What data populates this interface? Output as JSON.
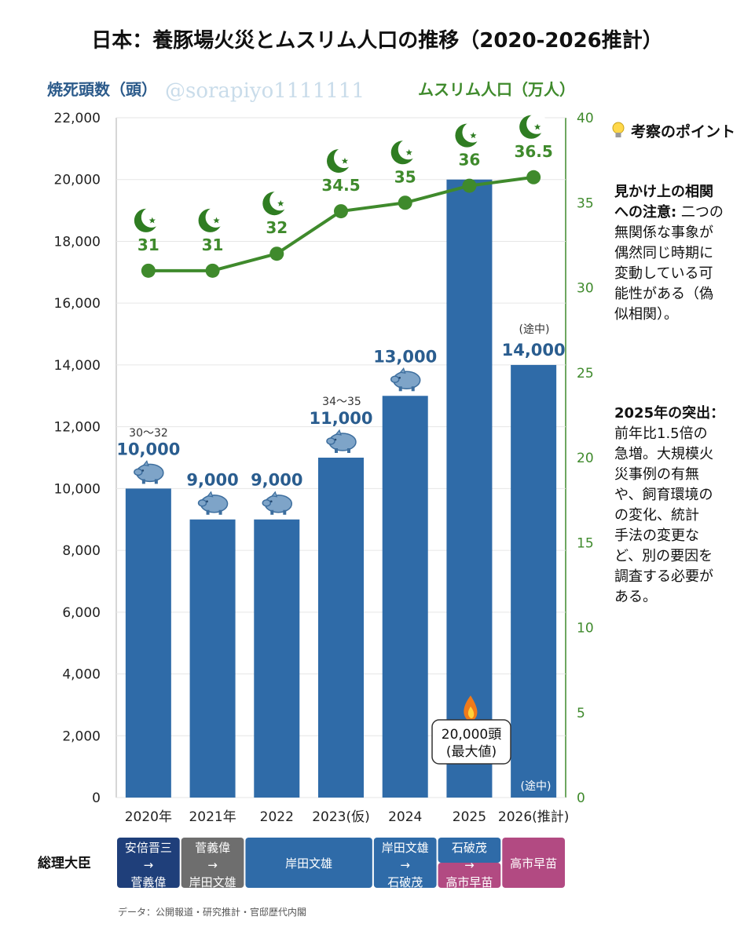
{
  "title": "日本：養豚場火災とムスリム人口の推移（2020-2026推計）",
  "watermark": "@sorapiyo1111111",
  "chart_data": {
    "type": "bar+line",
    "categories": [
      "2020年",
      "2021年",
      "2022",
      "2023(仮)",
      "2024",
      "2025",
      "2026(推計)"
    ],
    "bar_series": {
      "ylabel": "焼死頭数（頭）",
      "values": [
        10000,
        9000,
        9000,
        11000,
        13000,
        20000,
        14000
      ],
      "value_labels": [
        "10,000",
        "9,000",
        "9,000",
        "11,000",
        "13,000",
        "",
        "14,000"
      ],
      "ylim": [
        0,
        22000
      ],
      "yticks": [
        "0",
        "2,000",
        "4,000",
        "6,000",
        "8,000",
        "10,000",
        "12,000",
        "14,000",
        "16,000",
        "18,000",
        "20,000",
        "22,000"
      ],
      "color": "#2f6ba8"
    },
    "line_series": {
      "ylabel": "ムスリム人口（万人）",
      "values": [
        31,
        31,
        32,
        34.5,
        35,
        36,
        36.5
      ],
      "value_labels": [
        "31",
        "31",
        "32",
        "34.5",
        "35",
        "36",
        "36.5"
      ],
      "ylim": [
        0,
        40
      ],
      "yticks": [
        "0",
        "5",
        "10",
        "15",
        "20",
        "25",
        "30",
        "35",
        "40"
      ],
      "color": "#3f8a2c"
    },
    "annotations": {
      "range_2020": "30〜32",
      "range_2023": "34〜35",
      "in_progress_top": "(途中)",
      "in_progress_bottom": "(途中)",
      "max_line1": "20,000頭",
      "max_line2": "(最大値)"
    }
  },
  "prime_ministers": {
    "row_label": "総理大臣",
    "items": [
      {
        "lines": [
          "安倍晋三",
          "→",
          "菅義偉"
        ],
        "color": "#1f3f7a"
      },
      {
        "lines": [
          "菅義偉",
          "→",
          "岸田文雄"
        ],
        "color": "#6e6e6e"
      },
      {
        "lines": [
          "岸田文雄"
        ],
        "color": "#2f6ba8"
      },
      {
        "lines": [
          "岸田文雄",
          "→",
          "石破茂"
        ],
        "color": "#2f6ba8"
      },
      {
        "lines": [
          "石破茂",
          "→",
          "高市早苗"
        ],
        "color": "#b24a82"
      },
      {
        "lines": [
          "高市早苗"
        ],
        "color": "#b24a82"
      }
    ]
  },
  "source": "データ：公開報道・研究推計・官邸歴代内閣",
  "sidebar": {
    "heading": "考察のポイント",
    "block1_lines": [
      {
        "text": "見かけ上の相関",
        "bold": true
      },
      {
        "text": "への注意: 二つの",
        "bold": false,
        "bold_prefix": "への注意:"
      },
      {
        "text": "無関係な事象が",
        "bold": false
      },
      {
        "text": "偶然同じ時期に",
        "bold": false
      },
      {
        "text": "変動している可",
        "bold": false
      },
      {
        "text": "能性がある（偽",
        "bold": false
      },
      {
        "text": "似相関）。",
        "bold": false
      }
    ],
    "block2_lines": [
      {
        "text": "2025年の突出：",
        "bold": true
      },
      {
        "text": "前年比1.5倍の",
        "bold": false
      },
      {
        "text": "急増。大規模火",
        "bold": false
      },
      {
        "text": "災事例の有無",
        "bold": false
      },
      {
        "text": "や、飼育環境の",
        "bold": false
      },
      {
        "text": "の変化、統計",
        "bold": false
      },
      {
        "text": "手法の変更な",
        "bold": false
      },
      {
        "text": "ど、別の要因を",
        "bold": false
      },
      {
        "text": "調査する必要が",
        "bold": false
      },
      {
        "text": "ある。",
        "bold": false
      }
    ]
  }
}
